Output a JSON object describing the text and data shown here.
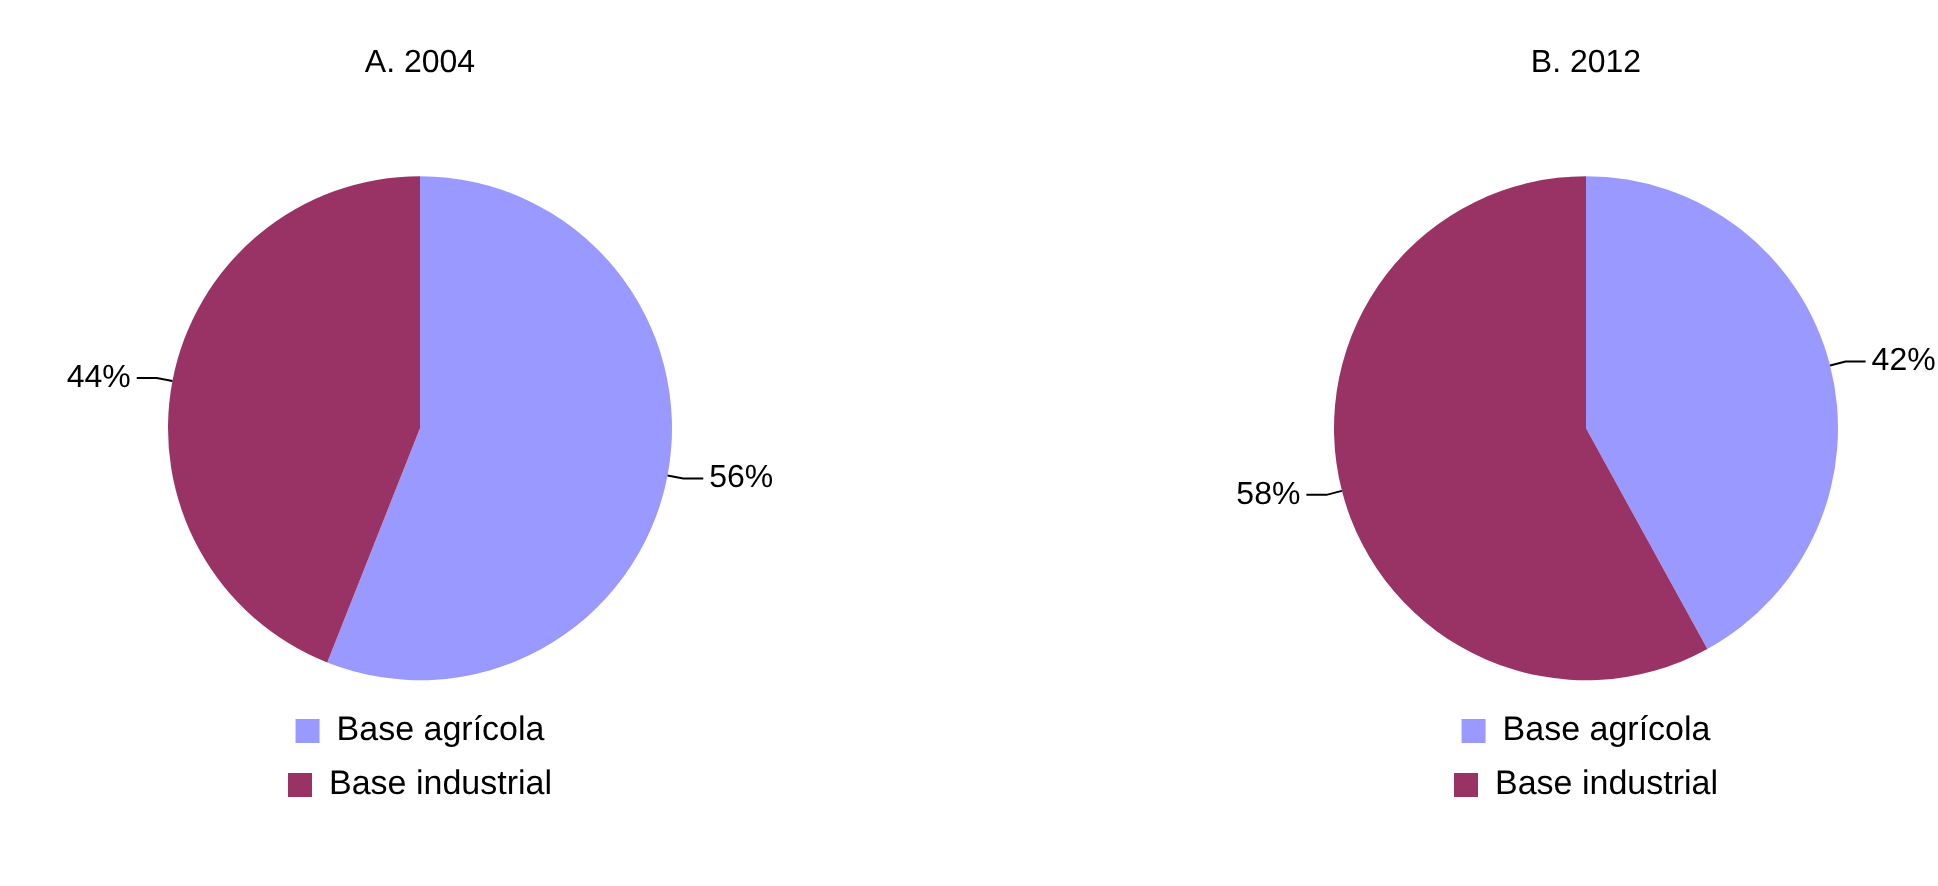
{
  "chart_data": [
    {
      "type": "pie",
      "title": "A. 2004",
      "categories": [
        "Base agrícola",
        "Base industrial"
      ],
      "values": [
        56,
        44
      ],
      "colors": [
        "#9999ff",
        "#993366"
      ],
      "value_labels": [
        "56%",
        "44%"
      ],
      "legend": "bottom"
    },
    {
      "type": "pie",
      "title": "B. 2012",
      "categories": [
        "Base agrícola",
        "Base industrial"
      ],
      "values": [
        42,
        58
      ],
      "colors": [
        "#9999ff",
        "#993366"
      ],
      "value_labels": [
        "42%",
        "58%"
      ],
      "legend": "bottom"
    }
  ]
}
